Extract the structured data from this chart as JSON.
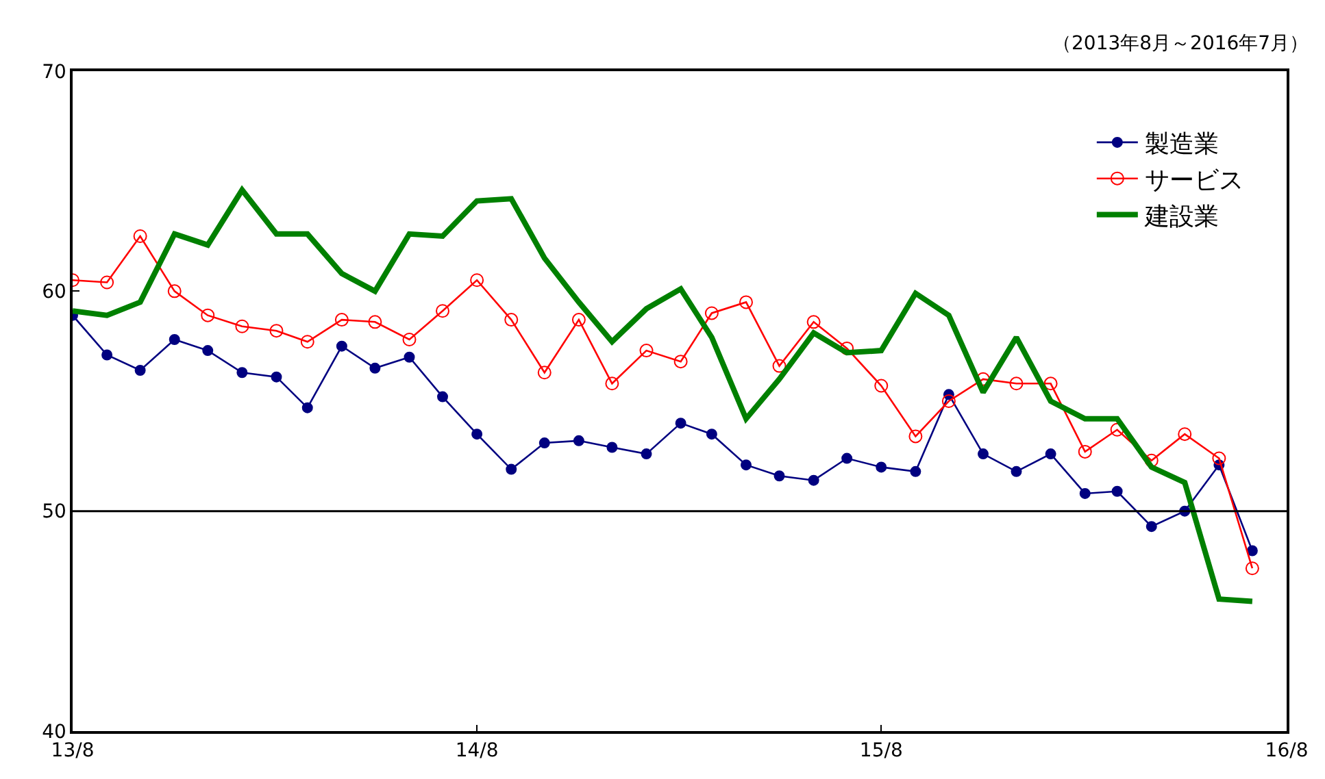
{
  "chart_data": {
    "type": "line",
    "annotations": [
      "（2013年8月～2016年7月）"
    ],
    "x": [
      "2013-08",
      "2013-09",
      "2013-10",
      "2013-11",
      "2013-12",
      "2014-01",
      "2014-02",
      "2014-03",
      "2014-04",
      "2014-05",
      "2014-06",
      "2014-07",
      "2014-08",
      "2014-09",
      "2014-10",
      "2014-11",
      "2014-12",
      "2015-01",
      "2015-02",
      "2015-03",
      "2015-04",
      "2015-05",
      "2015-06",
      "2015-07",
      "2015-08",
      "2015-09",
      "2015-10",
      "2015-11",
      "2015-12",
      "2016-01",
      "2016-02",
      "2016-03",
      "2016-04",
      "2016-05",
      "2016-06",
      "2016-07"
    ],
    "xlim": [
      "2013-08",
      "2016-08"
    ],
    "xticks": [
      {
        "value": "2013-08",
        "label": "13/8"
      },
      {
        "value": "2014-08",
        "label": "14/8"
      },
      {
        "value": "2015-08",
        "label": "15/8"
      },
      {
        "value": "2016-08",
        "label": "16/8"
      }
    ],
    "ylim": [
      40,
      70
    ],
    "yticks": [
      40,
      50,
      60,
      70
    ],
    "legend": "top right",
    "ref_lines": [
      {
        "axis": "y",
        "value": 50,
        "color": "#000000"
      }
    ],
    "series": [
      {
        "name": "製造業",
        "color": "#000080",
        "marker": "circle",
        "values": [
          58.9,
          57.1,
          56.4,
          57.8,
          57.3,
          56.3,
          56.1,
          54.7,
          57.5,
          56.5,
          57.0,
          55.2,
          53.5,
          51.9,
          53.1,
          53.2,
          52.9,
          52.6,
          54.0,
          53.5,
          52.1,
          51.6,
          51.4,
          52.4,
          52.0,
          51.8,
          55.3,
          52.6,
          51.8,
          52.6,
          50.8,
          50.9,
          49.3,
          50.0,
          52.1,
          48.2
        ]
      },
      {
        "name": "サービス",
        "color": "#ff0000",
        "marker": "circle-open",
        "values": [
          60.5,
          60.4,
          62.5,
          60.0,
          58.9,
          58.4,
          58.2,
          57.7,
          58.7,
          58.6,
          57.8,
          59.1,
          60.5,
          58.7,
          56.3,
          58.7,
          55.8,
          57.3,
          56.8,
          59.0,
          59.5,
          56.6,
          58.6,
          57.4,
          55.7,
          53.4,
          55.0,
          56.0,
          55.8,
          55.8,
          52.7,
          53.7,
          52.3,
          53.5,
          52.4,
          47.4
        ]
      },
      {
        "name": "建設業",
        "color": "#008000",
        "marker": "none",
        "values": [
          59.1,
          58.9,
          59.5,
          62.6,
          62.1,
          64.6,
          62.6,
          62.6,
          60.8,
          60.0,
          62.6,
          62.5,
          64.1,
          64.2,
          61.5,
          59.5,
          57.7,
          59.2,
          60.1,
          57.9,
          54.2,
          56.0,
          58.1,
          57.2,
          57.3,
          59.9,
          58.9,
          55.4,
          57.9,
          55.0,
          54.2,
          54.2,
          52.0,
          51.3,
          46.0,
          45.9
        ]
      }
    ]
  }
}
